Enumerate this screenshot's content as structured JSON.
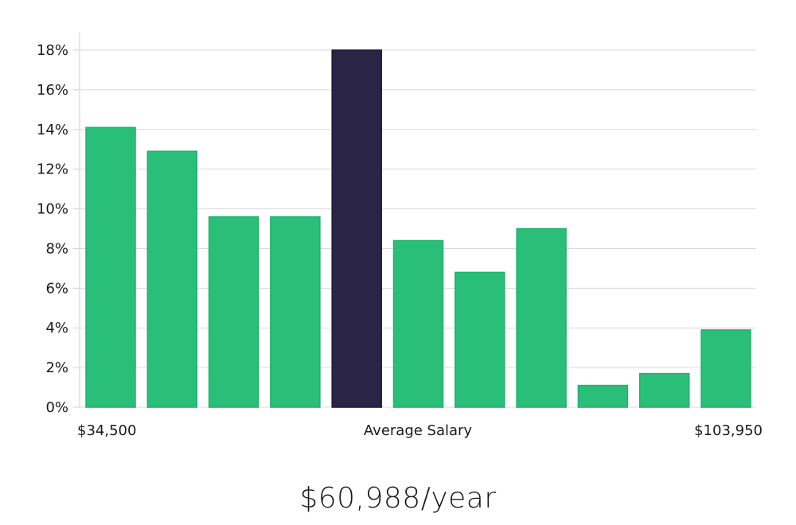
{
  "chart_data": {
    "type": "bar",
    "title": "",
    "xlabel": "",
    "ylabel": "",
    "ylim": [
      0,
      18
    ],
    "ytick_values": [
      0,
      2,
      4,
      6,
      8,
      10,
      12,
      14,
      16,
      18
    ],
    "ytick_labels": [
      "0%",
      "2%",
      "4%",
      "6%",
      "8%",
      "10%",
      "12%",
      "14%",
      "16%",
      "18%"
    ],
    "values": [
      14.1,
      12.9,
      9.6,
      9.6,
      18.0,
      8.4,
      6.8,
      9.0,
      1.1,
      1.7,
      3.9
    ],
    "highlight_index": 4,
    "x_labels": {
      "left": "$34,500",
      "center": "Average Salary",
      "right": "$103,950"
    },
    "grid": true,
    "legend": "none"
  },
  "colors": {
    "bar": "#2abf78",
    "bar_edge": "#22b06e",
    "highlight": "#2a2547",
    "highlight_edge": "#1c1836",
    "grid": "#d9d9d9",
    "axis": "#cfcfcf"
  },
  "summary": {
    "salary": "$60,988/year"
  }
}
